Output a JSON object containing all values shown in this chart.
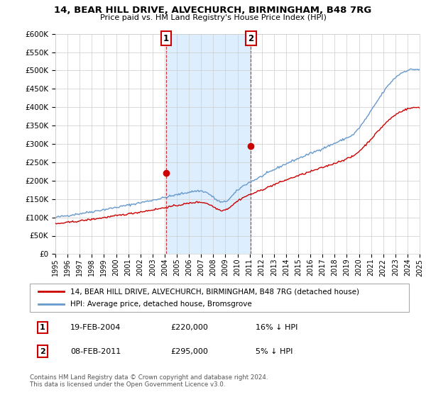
{
  "title": "14, BEAR HILL DRIVE, ALVECHURCH, BIRMINGHAM, B48 7RG",
  "subtitle": "Price paid vs. HM Land Registry's House Price Index (HPI)",
  "legend_label_red": "14, BEAR HILL DRIVE, ALVECHURCH, BIRMINGHAM, B48 7RG (detached house)",
  "legend_label_blue": "HPI: Average price, detached house, Bromsgrove",
  "annotation1_date": "19-FEB-2004",
  "annotation1_price": "£220,000",
  "annotation1_hpi": "16% ↓ HPI",
  "annotation2_date": "08-FEB-2011",
  "annotation2_price": "£295,000",
  "annotation2_hpi": "5% ↓ HPI",
  "footer": "Contains HM Land Registry data © Crown copyright and database right 2024.\nThis data is licensed under the Open Government Licence v3.0.",
  "sale1_year": 2004.13,
  "sale1_price": 220000,
  "sale2_year": 2011.1,
  "sale2_price": 295000,
  "xmin": 1995,
  "xmax": 2025,
  "ymin": 0,
  "ymax": 600000,
  "yticks": [
    0,
    50000,
    100000,
    150000,
    200000,
    250000,
    300000,
    350000,
    400000,
    450000,
    500000,
    550000,
    600000
  ],
  "red_color": "#cc0000",
  "blue_color": "#6699cc",
  "shade_color": "#ddeeff",
  "background_color": "#ffffff"
}
